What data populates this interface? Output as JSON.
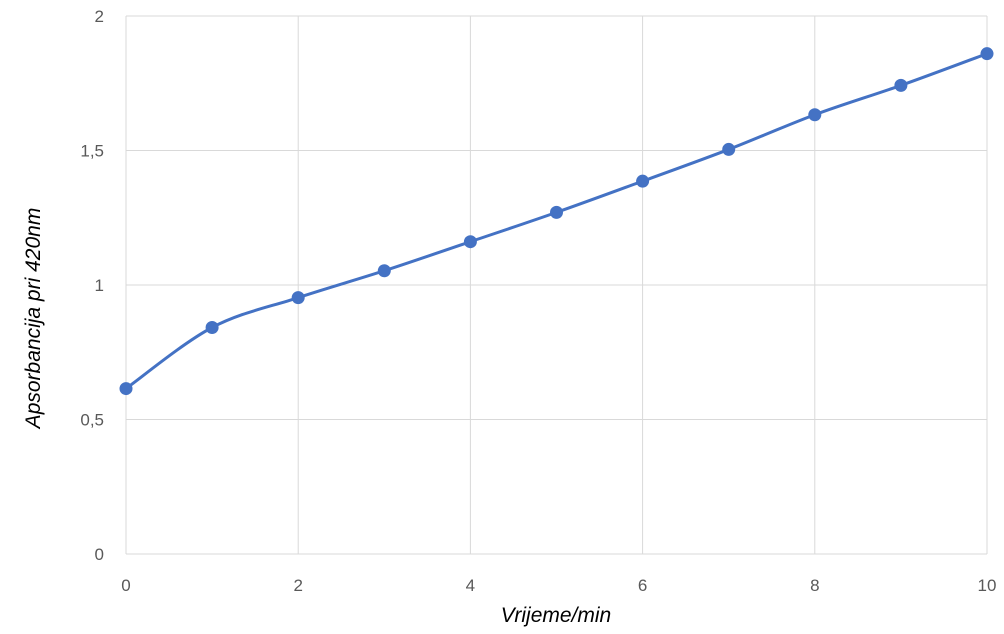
{
  "chart_data": {
    "type": "line",
    "title": "",
    "xlabel": "Vrijeme/min",
    "ylabel": "Apsorbancija pri 420nm",
    "x": [
      0,
      1,
      2,
      3,
      4,
      5,
      6,
      7,
      8,
      9,
      10
    ],
    "series": [
      {
        "values": [
          0.615,
          0.842,
          0.953,
          1.053,
          1.161,
          1.27,
          1.386,
          1.504,
          1.633,
          1.742,
          1.86
        ],
        "color": "#4472C4",
        "smooth": true,
        "markers": true
      }
    ],
    "xlim": [
      0,
      10
    ],
    "ylim": [
      0,
      2
    ],
    "xticks": [
      0,
      2,
      4,
      6,
      8,
      10
    ],
    "xtick_labels": [
      "0",
      "2",
      "4",
      "6",
      "8",
      "10"
    ],
    "yticks": [
      0,
      0.5,
      1,
      1.5,
      2
    ],
    "ytick_labels": [
      "0",
      "0,5",
      "1",
      "1,5",
      "2"
    ],
    "grid": true,
    "legend": "none",
    "colors": {
      "series": "#4472C4",
      "grid": "#d9d9d9",
      "tick_text": "#595959",
      "axis_title": "#000000"
    }
  }
}
